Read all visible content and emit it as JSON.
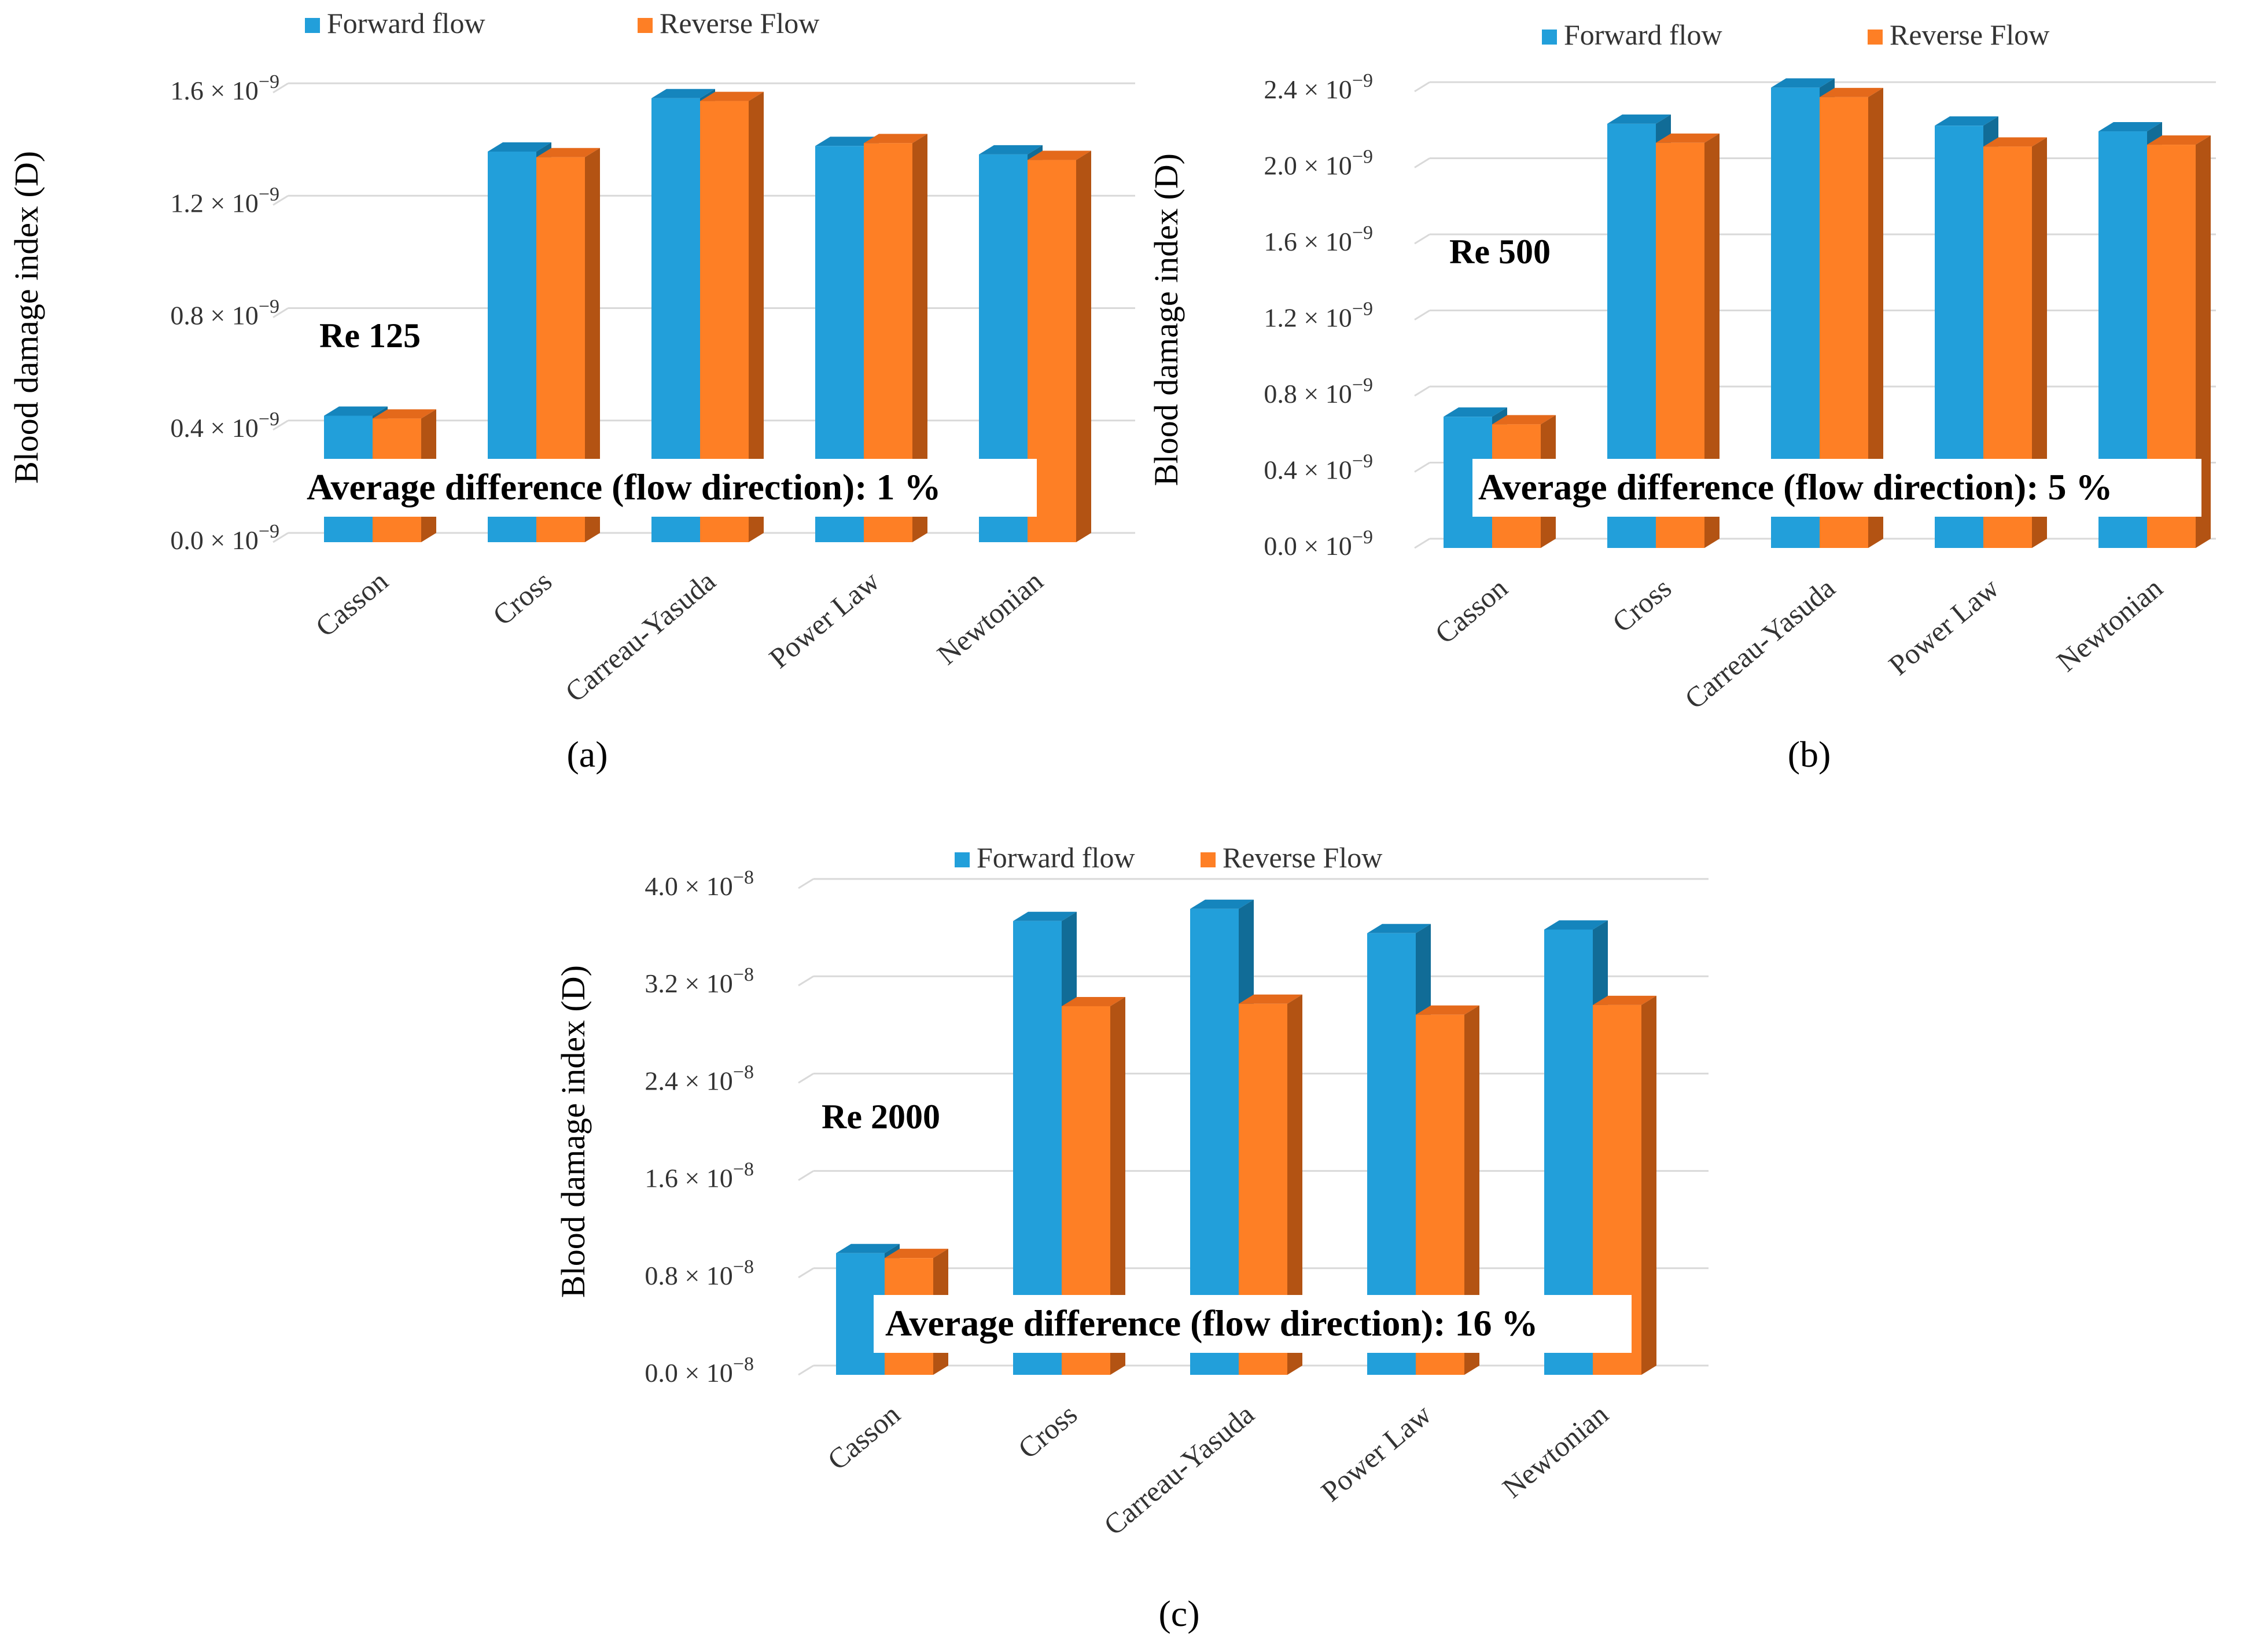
{
  "colors": {
    "forward": "#229FDA",
    "forward_top": "#1585BD",
    "forward_side": "#116C97",
    "reverse": "#FE7F25",
    "reverse_top": "#E4691B",
    "reverse_side": "#B35313",
    "grid": "#D9D9D9",
    "background": "#FFFFFF"
  },
  "chart_data": [
    {
      "panel": "(a)",
      "type": "bar",
      "annotation": "Re 125",
      "note": "Average  difference (flow direction): 1 %",
      "ylabel": "Blood damage index (D)",
      "y_exponent": "−9",
      "ylim": [
        0,
        1.6
      ],
      "yticks": [
        "0.0",
        "0.4",
        "0.8",
        "1.2",
        "1.6"
      ],
      "categories": [
        "Casson",
        "Cross",
        "Carreau-Yasuda",
        "Power Law",
        "Newtonian"
      ],
      "legend": "top",
      "grid": true,
      "series": [
        {
          "name": "Forward flow",
          "values": [
            0.45,
            1.39,
            1.58,
            1.41,
            1.38
          ]
        },
        {
          "name": "Reverse Flow",
          "values": [
            0.44,
            1.37,
            1.57,
            1.42,
            1.36
          ]
        }
      ]
    },
    {
      "panel": "(b)",
      "type": "bar",
      "annotation": "Re 500",
      "note": "Average  difference (flow direction): 5 %",
      "ylabel": "Blood damage index (D)",
      "y_exponent": "−9",
      "ylim": [
        0,
        2.4
      ],
      "yticks": [
        "0.0",
        "0.4",
        "0.8",
        "1.2",
        "1.6",
        "2.0",
        "2.4"
      ],
      "categories": [
        "Casson",
        "Cross",
        "Carreau-Yasuda",
        "Power Law",
        "Newtonian"
      ],
      "legend": "top",
      "grid": true,
      "series": [
        {
          "name": "Forward flow",
          "values": [
            0.69,
            2.23,
            2.42,
            2.22,
            2.19
          ]
        },
        {
          "name": "Reverse Flow",
          "values": [
            0.65,
            2.13,
            2.37,
            2.11,
            2.12
          ]
        }
      ]
    },
    {
      "panel": "(c)",
      "type": "bar",
      "annotation": "Re 2000",
      "note": "Average  difference (flow direction): 16 %",
      "ylabel": "Blood damage index (D)",
      "y_exponent": "−8",
      "ylim": [
        0,
        4.0
      ],
      "yticks": [
        "0.0",
        "0.8",
        "1.6",
        "2.4",
        "3.2",
        "4.0"
      ],
      "categories": [
        "Casson",
        "Cross",
        "Carreau-Yasuda",
        "Power Law",
        "Newtonian"
      ],
      "legend": "top",
      "grid": true,
      "series": [
        {
          "name": "Forward flow",
          "values": [
            1.0,
            3.73,
            3.83,
            3.63,
            3.66
          ]
        },
        {
          "name": "Reverse Flow",
          "values": [
            0.96,
            3.03,
            3.05,
            2.96,
            3.04
          ]
        }
      ]
    }
  ]
}
